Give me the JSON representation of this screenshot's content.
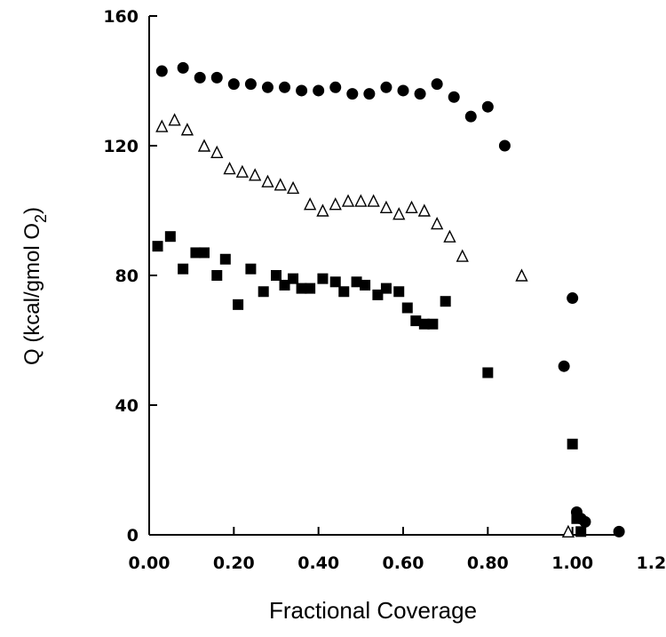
{
  "chart_data": {
    "type": "scatter",
    "title": "",
    "xlabel": "Fractional Coverage",
    "ylabel": "Q (kcal/gmol O",
    "ylabel_subscript": "2",
    "ylabel_close": ")",
    "xlim": [
      0.0,
      1.2
    ],
    "ylim": [
      0,
      160
    ],
    "xticks": [
      "0.00",
      "0.20",
      "0.40",
      "0.60",
      "0.80",
      "1.00",
      "1.20"
    ],
    "yticks": [
      "0",
      "40",
      "80",
      "120",
      "160"
    ],
    "grid": false,
    "legend": "none",
    "series": [
      {
        "marker": "filled-circle",
        "points": [
          [
            0.03,
            143
          ],
          [
            0.08,
            144
          ],
          [
            0.12,
            141
          ],
          [
            0.16,
            141
          ],
          [
            0.2,
            139
          ],
          [
            0.24,
            139
          ],
          [
            0.28,
            138
          ],
          [
            0.32,
            138
          ],
          [
            0.36,
            137
          ],
          [
            0.4,
            137
          ],
          [
            0.44,
            138
          ],
          [
            0.48,
            136
          ],
          [
            0.52,
            136
          ],
          [
            0.56,
            138
          ],
          [
            0.6,
            137
          ],
          [
            0.64,
            136
          ],
          [
            0.68,
            139
          ],
          [
            0.72,
            135
          ],
          [
            0.76,
            129
          ],
          [
            0.8,
            132
          ],
          [
            0.84,
            120
          ],
          [
            0.98,
            52
          ],
          [
            1.0,
            73
          ],
          [
            1.01,
            7
          ],
          [
            1.02,
            5
          ],
          [
            1.03,
            4
          ],
          [
            1.11,
            1
          ]
        ]
      },
      {
        "marker": "open-triangle",
        "points": [
          [
            0.03,
            126
          ],
          [
            0.06,
            128
          ],
          [
            0.09,
            125
          ],
          [
            0.13,
            120
          ],
          [
            0.16,
            118
          ],
          [
            0.19,
            113
          ],
          [
            0.22,
            112
          ],
          [
            0.25,
            111
          ],
          [
            0.28,
            109
          ],
          [
            0.31,
            108
          ],
          [
            0.34,
            107
          ],
          [
            0.38,
            102
          ],
          [
            0.41,
            100
          ],
          [
            0.44,
            102
          ],
          [
            0.47,
            103
          ],
          [
            0.5,
            103
          ],
          [
            0.53,
            103
          ],
          [
            0.56,
            101
          ],
          [
            0.59,
            99
          ],
          [
            0.62,
            101
          ],
          [
            0.65,
            100
          ],
          [
            0.68,
            96
          ],
          [
            0.71,
            92
          ],
          [
            0.74,
            86
          ],
          [
            0.88,
            80
          ],
          [
            0.99,
            1
          ]
        ]
      },
      {
        "marker": "filled-square",
        "points": [
          [
            0.02,
            89
          ],
          [
            0.05,
            92
          ],
          [
            0.08,
            82
          ],
          [
            0.11,
            87
          ],
          [
            0.13,
            87
          ],
          [
            0.16,
            80
          ],
          [
            0.18,
            85
          ],
          [
            0.21,
            71
          ],
          [
            0.24,
            82
          ],
          [
            0.27,
            75
          ],
          [
            0.3,
            80
          ],
          [
            0.32,
            77
          ],
          [
            0.34,
            79
          ],
          [
            0.36,
            76
          ],
          [
            0.38,
            76
          ],
          [
            0.41,
            79
          ],
          [
            0.44,
            78
          ],
          [
            0.46,
            75
          ],
          [
            0.49,
            78
          ],
          [
            0.51,
            77
          ],
          [
            0.54,
            74
          ],
          [
            0.56,
            76
          ],
          [
            0.59,
            75
          ],
          [
            0.61,
            70
          ],
          [
            0.63,
            66
          ],
          [
            0.65,
            65
          ],
          [
            0.67,
            65
          ],
          [
            0.7,
            72
          ],
          [
            0.8,
            50
          ],
          [
            1.0,
            28
          ],
          [
            1.01,
            5
          ],
          [
            1.02,
            1
          ]
        ]
      }
    ]
  }
}
